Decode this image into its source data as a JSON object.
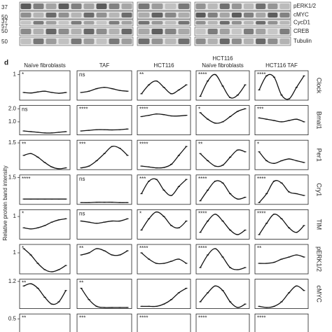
{
  "blots": {
    "markers": [
      "37",
      "50",
      "37",
      "57",
      "50",
      "50"
    ],
    "proteins": [
      "pERK1/2",
      "cMYC",
      "CycD1",
      "CREB",
      "Tubulin"
    ]
  },
  "panel_label": "d",
  "y_axis_label": "Relative protein band intensity",
  "columns": [
    [
      "Naïve fibroblasts"
    ],
    [
      "TAF"
    ],
    [
      "HCT116"
    ],
    [
      "HCT116",
      "Naïve fibroblasts"
    ],
    [
      "HCT116 TAF"
    ]
  ],
  "chart_data": [
    {
      "type": "line",
      "title": "Clock",
      "ylim": [
        0,
        1.15
      ],
      "yticks": [
        1
      ],
      "panels": [
        {
          "label": "*",
          "values": [
            0.3,
            0.28,
            0.32,
            0.35,
            0.3,
            0.27,
            0.3
          ]
        },
        {
          "label": "ns",
          "values": [
            0.3,
            0.35,
            0.45,
            0.5,
            0.45,
            0.38,
            0.35
          ]
        },
        {
          "label": "**",
          "values": [
            0.25,
            0.6,
            0.75,
            0.5,
            0.25,
            0.4,
            0.6
          ]
        },
        {
          "label": "****",
          "values": [
            0.15,
            0.75,
            1.0,
            0.55,
            0.1,
            0.2,
            0.6
          ]
        },
        {
          "label": "****",
          "values": [
            0.4,
            0.95,
            0.9,
            0.2,
            0.05,
            0.5,
            0.95
          ]
        }
      ]
    },
    {
      "type": "line",
      "title": "Bmal1",
      "ylim": [
        0,
        2.25
      ],
      "yticks": [
        {
          "value": 2,
          "label": "2.0"
        },
        {
          "value": 1,
          "label": "1.0"
        }
      ],
      "panels": [
        {
          "label": "ns",
          "values": [
            0.3,
            0.25,
            0.2,
            0.15,
            0.15,
            0.2,
            0.25
          ]
        },
        {
          "label": "****",
          "values": [
            0.3,
            0.35,
            0.4,
            0.4,
            0.38,
            0.4,
            0.45
          ]
        },
        {
          "label": "****",
          "values": [
            1.4,
            1.5,
            1.6,
            1.55,
            1.45,
            1.45,
            1.5
          ]
        },
        {
          "label": "*",
          "values": [
            1.7,
            1.2,
            0.9,
            1.0,
            1.4,
            1.8,
            2.0
          ]
        },
        {
          "label": "***",
          "values": [
            1.3,
            1.2,
            1.1,
            1.0,
            1.1,
            1.2,
            1.0
          ]
        }
      ]
    },
    {
      "type": "line",
      "title": "Per1",
      "ylim": [
        0,
        1.65
      ],
      "yticks": [
        1.5
      ],
      "panels": [
        {
          "label": "**",
          "values": [
            0.8,
            0.9,
            0.7,
            0.4,
            0.15,
            0.05,
            0.1
          ]
        },
        {
          "label": "***",
          "values": [
            0.1,
            0.2,
            0.5,
            0.9,
            1.3,
            1.2,
            0.8
          ]
        },
        {
          "label": "****",
          "values": [
            0.2,
            0.15,
            0.1,
            0.12,
            0.3,
            0.8,
            1.3
          ]
        },
        {
          "label": "**",
          "values": [
            0.9,
            0.5,
            0.2,
            0.25,
            0.7,
            1.1,
            1.0
          ]
        },
        {
          "label": "*",
          "values": [
            1.0,
            0.5,
            0.35,
            0.5,
            0.6,
            0.5,
            0.4
          ]
        }
      ]
    },
    {
      "type": "line",
      "title": "Cry1",
      "ylim": [
        0,
        1.65
      ],
      "yticks": [
        1.5
      ],
      "panels": [
        {
          "label": "****",
          "values": [
            0.3,
            0.3,
            0.3,
            0.3,
            0.3,
            0.3,
            0.3
          ]
        },
        {
          "label": "ns",
          "values": [
            0.1,
            0.1,
            0.12,
            0.12,
            0.12,
            0.1,
            0.1
          ]
        },
        {
          "label": "***",
          "values": [
            0.6,
            1.3,
            1.4,
            0.8,
            0.5,
            1.0,
            1.4
          ]
        },
        {
          "label": "****",
          "values": [
            0.2,
            0.8,
            1.3,
            1.2,
            0.6,
            0.3,
            0.4
          ]
        },
        {
          "label": "****",
          "values": [
            0.1,
            0.6,
            1.3,
            1.2,
            0.7,
            0.6,
            0.5
          ]
        }
      ]
    },
    {
      "type": "line",
      "title": "TIM",
      "ylim": [
        0,
        1.3
      ],
      "yticks": [
        1
      ],
      "panels": [
        {
          "label": "*",
          "values": [
            0.5,
            0.45,
            0.5,
            0.6,
            0.75,
            0.85,
            0.9
          ]
        },
        {
          "label": "ns",
          "values": [
            0.8,
            0.75,
            0.7,
            0.75,
            0.8,
            0.8,
            0.9
          ]
        },
        {
          "label": "*",
          "values": [
            0.4,
            0.9,
            1.2,
            1.0,
            0.6,
            0.5,
            0.8
          ]
        },
        {
          "label": "****",
          "values": [
            0.3,
            0.8,
            1.1,
            0.8,
            0.4,
            0.2,
            0.4
          ]
        },
        {
          "label": "****",
          "values": [
            0.2,
            0.7,
            1.1,
            0.9,
            0.5,
            0.3,
            0.6
          ]
        }
      ]
    },
    {
      "type": "line",
      "title": "pERK1/2",
      "ylim": [
        0,
        1.4
      ],
      "yticks": [
        1
      ],
      "panels": [
        {
          "label": "*",
          "values": [
            1.2,
            0.9,
            0.5,
            0.2,
            0.1,
            0.2,
            0.4
          ]
        },
        {
          "label": "**",
          "values": [
            0.9,
            1.0,
            1.2,
            1.1,
            0.9,
            0.9,
            1.1
          ]
        },
        {
          "label": "****",
          "values": [
            1.0,
            0.7,
            0.5,
            0.5,
            0.6,
            0.7,
            0.5
          ]
        },
        {
          "label": "****",
          "values": [
            0.3,
            0.9,
            1.2,
            0.8,
            0.3,
            0.2,
            0.3
          ]
        },
        {
          "label": "**",
          "values": [
            0.5,
            0.5,
            0.55,
            0.7,
            0.8,
            0.9,
            0.8
          ]
        }
      ]
    },
    {
      "type": "line",
      "title": "cMYC",
      "ylim": [
        0,
        1.3
      ],
      "yticks": [
        1.2
      ],
      "panels": [
        {
          "label": "**",
          "values": [
            1.0,
            1.1,
            0.9,
            0.5,
            0.2,
            0.3,
            0.8
          ]
        },
        {
          "label": "**",
          "values": [
            0.9,
            0.4,
            0.1,
            0.05,
            0.05,
            0.05,
            0.05
          ]
        },
        {
          "values": [
            0.1,
            0.1,
            0.1,
            0.2,
            0.4,
            0.7,
            0.9
          ]
        },
        {
          "values": [
            0.3,
            0.7,
            1.0,
            0.8,
            0.3,
            0.05,
            0.2
          ]
        },
        {
          "values": [
            0.1,
            0.05,
            0.1,
            0.3,
            0.7,
            1.0,
            0.8
          ]
        }
      ]
    },
    {
      "type": "line",
      "ylim": [
        0,
        0.6
      ],
      "yticks": [
        0.5
      ],
      "panels": [
        {
          "label": "**"
        },
        {
          "label": "***"
        },
        {
          "label": "****"
        },
        {
          "label": "****"
        },
        {
          "label": "****"
        }
      ]
    }
  ]
}
